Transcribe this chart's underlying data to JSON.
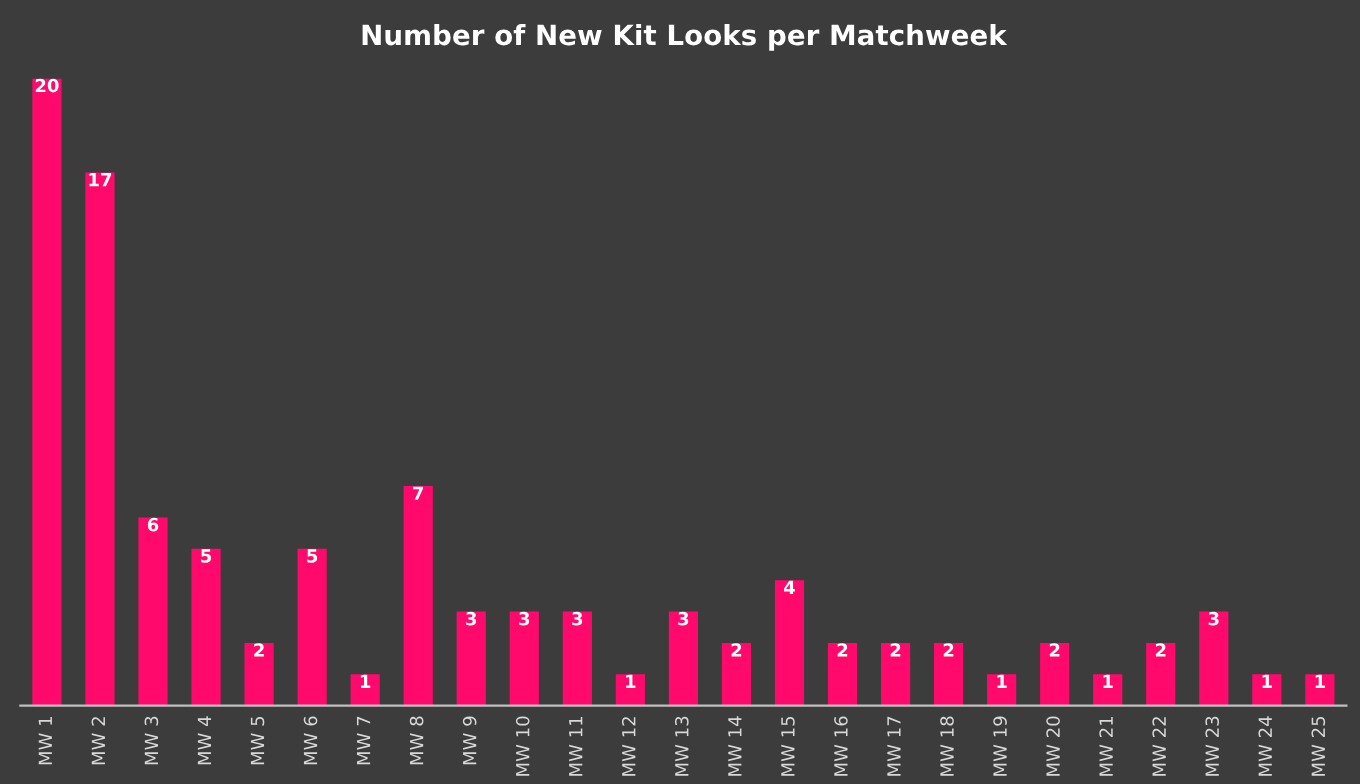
{
  "chart_data": {
    "type": "bar",
    "title": "Number of New Kit Looks per Matchweek",
    "categories": [
      "MW 1",
      "MW 2",
      "MW 3",
      "MW 4",
      "MW 5",
      "MW 6",
      "MW 7",
      "MW 8",
      "MW 9",
      "MW 10",
      "MW 11",
      "MW 12",
      "MW 13",
      "MW 14",
      "MW 15",
      "MW 16",
      "MW 17",
      "MW 18",
      "MW 19",
      "MW 20",
      "MW 21",
      "MW 22",
      "MW 23",
      "MW 24",
      "MW 25"
    ],
    "values": [
      20,
      17,
      6,
      5,
      2,
      5,
      1,
      7,
      3,
      3,
      3,
      1,
      3,
      2,
      4,
      2,
      2,
      2,
      1,
      2,
      1,
      2,
      3,
      1,
      1
    ],
    "color": "#ff0a6c",
    "data_labels": true,
    "tick_labels": "x",
    "grid": false,
    "legend": false
  }
}
